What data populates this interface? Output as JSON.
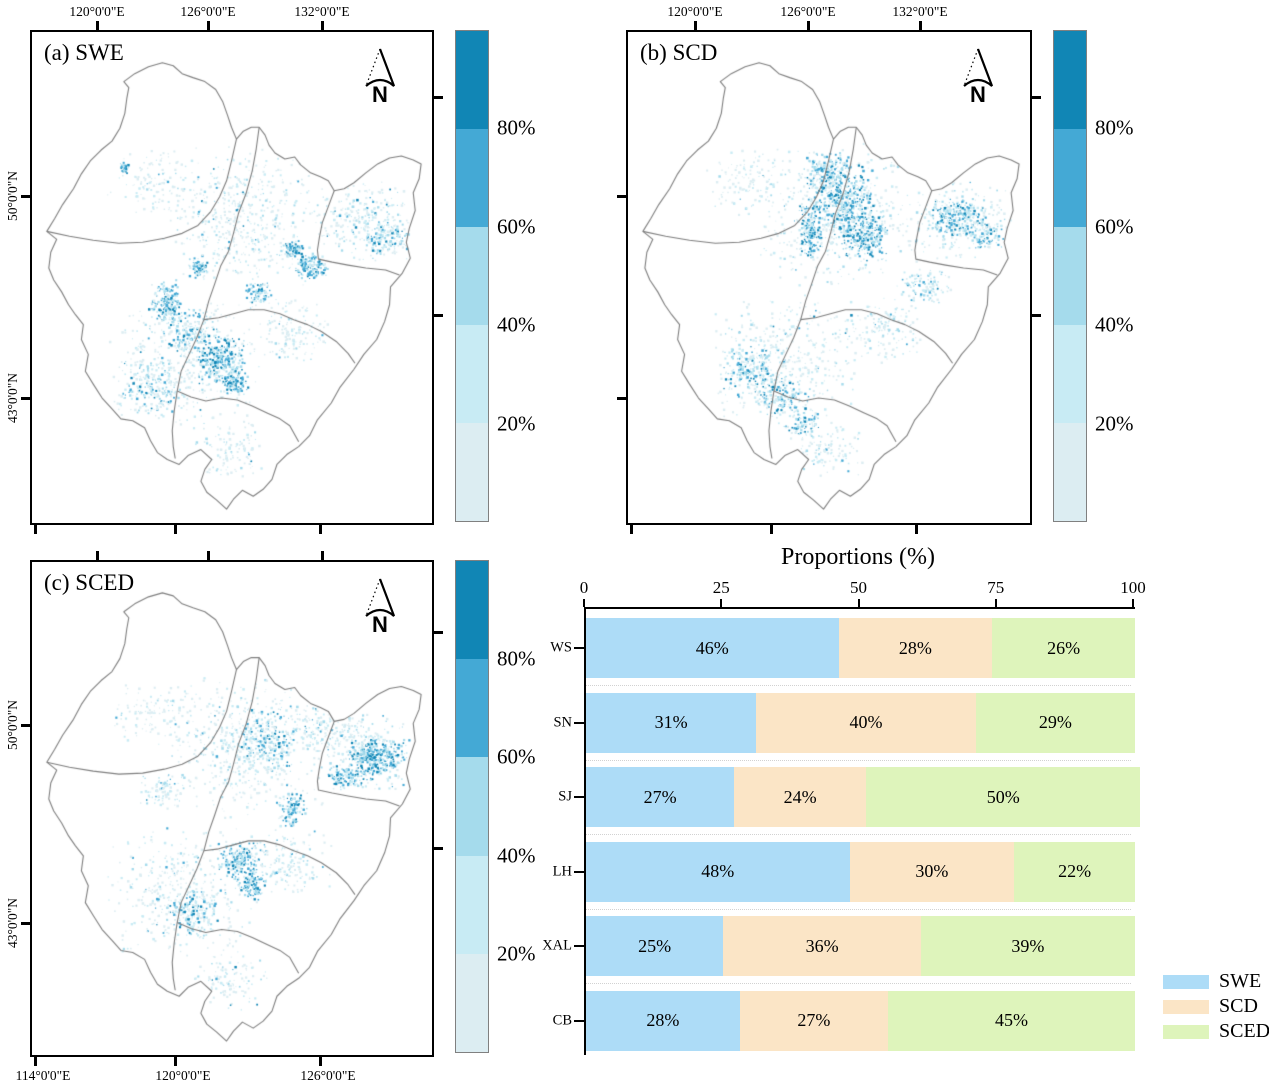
{
  "panels": [
    {
      "id": "a",
      "label": "(a) SWE",
      "north_label": "N",
      "top_axis_labels": [
        "120°0'0\"E",
        "126°0'0\"E",
        "132°0'0\"E"
      ],
      "left_axis_labels": [
        "50°0'0\"N",
        "43°0'0\"N"
      ],
      "bottom_axis_labels": []
    },
    {
      "id": "b",
      "label": "(b) SCD",
      "north_label": "N",
      "top_axis_labels": [
        "120°0'0\"E",
        "126°0'0\"E",
        "132°0'0\"E"
      ],
      "left_axis_labels": [],
      "bottom_axis_labels": []
    },
    {
      "id": "c",
      "label": "(c) SCED",
      "north_label": "N",
      "top_axis_labels": [],
      "left_axis_labels": [
        "50°0'0\"N",
        "43°0'0\"N"
      ],
      "bottom_axis_labels": [
        "114°0'0\"E",
        "120°0'0\"E",
        "126°0'0\"E"
      ]
    }
  ],
  "colorbar": {
    "tick_labels": [
      "80%",
      "60%",
      "40%",
      "20%"
    ],
    "class_colors": [
      "#1186b5",
      "#44a9d5",
      "#a5dbec",
      "#c8ebf4",
      "#dcedf2"
    ],
    "border_color": "#808080"
  },
  "map_style": {
    "boundary_color": "#7d7d7d",
    "frame_color": "#000000"
  },
  "chart_data": {
    "type": "bar",
    "stacked": true,
    "orientation": "horizontal",
    "title": "Proportions (%)",
    "x_ticks": [
      "0",
      "25",
      "50",
      "75",
      "100"
    ],
    "xlim": [
      0,
      100
    ],
    "categories": [
      "WS",
      "SN",
      "SJ",
      "LH",
      "XAL",
      "CB"
    ],
    "series": [
      {
        "name": "SWE",
        "color": "#addcf7",
        "values": [
          46,
          31,
          27,
          48,
          25,
          28
        ]
      },
      {
        "name": "SCD",
        "color": "#fbe5c6",
        "values": [
          28,
          40,
          24,
          30,
          36,
          27
        ]
      },
      {
        "name": "SCED",
        "color": "#def4bb",
        "values": [
          26,
          29,
          50,
          22,
          39,
          45
        ]
      }
    ],
    "value_suffix": "%",
    "legend": [
      "SWE",
      "SCD",
      "SCED"
    ],
    "legend_position": "bottom-right",
    "grid": "dotted-row-separators"
  }
}
